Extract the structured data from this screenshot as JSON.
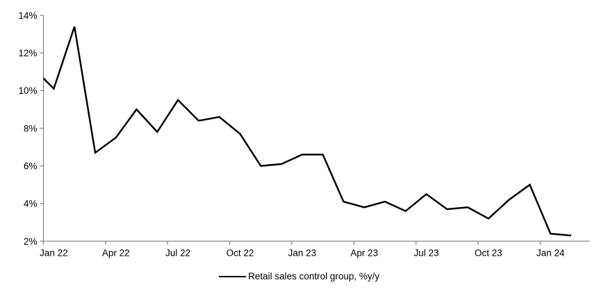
{
  "chart_data": {
    "type": "line",
    "title": "",
    "legend": "Retail sales control group, %y/y",
    "x": [
      "Jan 22",
      "Feb 22",
      "Mar 22",
      "Apr 22",
      "May 22",
      "Jun 22",
      "Jul 22",
      "Aug 22",
      "Sep 22",
      "Oct 22",
      "Nov 22",
      "Dec 22",
      "Jan 23",
      "Feb 23",
      "Mar 23",
      "Apr 23",
      "May 23",
      "Jun 23",
      "Jul 23",
      "Aug 23",
      "Sep 23",
      "Oct 23",
      "Nov 23",
      "Dec 23",
      "Jan 24",
      "Feb 24"
    ],
    "values": [
      10.1,
      13.4,
      6.7,
      7.5,
      9.0,
      7.8,
      9.5,
      8.4,
      8.6,
      7.7,
      6.0,
      6.1,
      6.6,
      6.6,
      4.1,
      3.8,
      4.1,
      3.6,
      4.5,
      3.7,
      3.8,
      3.2,
      4.2,
      5.0,
      2.4,
      2.3
    ],
    "lead_in": {
      "x": "Dec 21",
      "value": 11.2
    },
    "ylim": [
      2,
      14
    ],
    "ytick_labels": [
      "2%",
      "4%",
      "6%",
      "8%",
      "10%",
      "12%",
      "14%"
    ],
    "xtick_labels": [
      "Jan 22",
      "Apr 22",
      "Jul 22",
      "Oct 22",
      "Jan 23",
      "Apr 23",
      "Jul 23",
      "Oct 23",
      "Jan 24"
    ],
    "xtick_step_categories": 3,
    "grid": false,
    "legend_position": "bottom-center",
    "colors": {
      "series": "#000000",
      "axis": "#878787",
      "text": "#000000",
      "background": "#ffffff"
    }
  }
}
